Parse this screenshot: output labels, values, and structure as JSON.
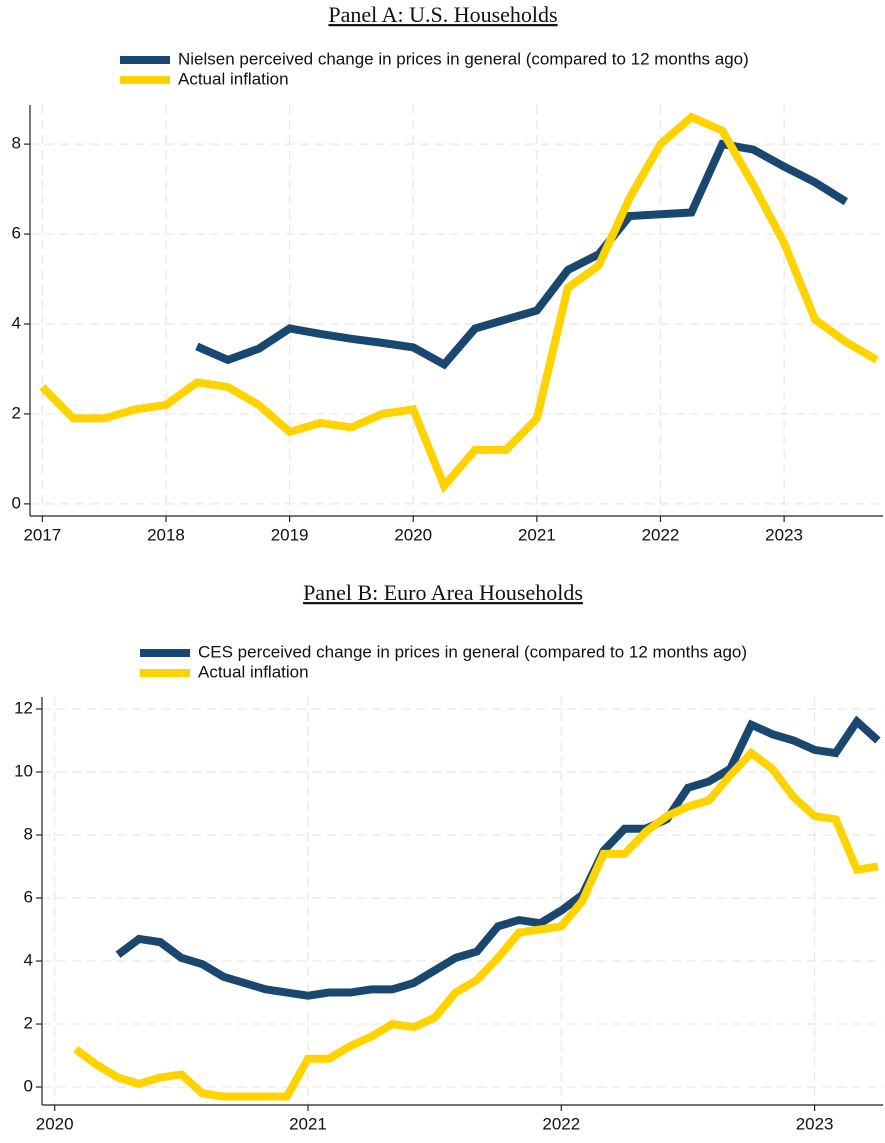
{
  "chart_data": [
    {
      "type": "line",
      "title": "Panel A: U.S. Households",
      "x": [
        2017,
        2017.25,
        2017.5,
        2017.75,
        2018,
        2018.25,
        2018.5,
        2018.75,
        2019,
        2019.25,
        2019.5,
        2019.75,
        2020,
        2020.25,
        2020.5,
        2020.75,
        2021,
        2021.25,
        2021.5,
        2021.75,
        2022,
        2022.25,
        2022.5,
        2022.75,
        2023,
        2023.25,
        2023.5,
        2023.75
      ],
      "series": [
        {
          "name": "Nielsen perceived change in prices in general (compared to 12 months ago)",
          "color": "#1a476f",
          "values": [
            null,
            null,
            null,
            null,
            null,
            3.5,
            3.2,
            3.45,
            3.9,
            3.78,
            3.67,
            3.58,
            3.48,
            3.1,
            3.9,
            4.1,
            4.3,
            5.2,
            5.55,
            6.4,
            6.44,
            6.48,
            8.0,
            7.88,
            7.5,
            7.15,
            6.72,
            null
          ]
        },
        {
          "name": "Actual inflation",
          "color": "#ffd300",
          "values": [
            2.6,
            1.9,
            1.9,
            2.1,
            2.2,
            2.7,
            2.6,
            2.2,
            1.6,
            1.8,
            1.7,
            2.0,
            2.1,
            0.4,
            1.2,
            1.2,
            1.9,
            4.8,
            5.3,
            6.8,
            8.0,
            8.6,
            8.3,
            7.1,
            5.8,
            4.1,
            3.6,
            3.2
          ]
        }
      ],
      "xlim": [
        2016.9,
        2023.8
      ],
      "xticks": [
        2017,
        2018,
        2019,
        2020,
        2021,
        2022,
        2023
      ],
      "ylim": [
        -0.27,
        8.87
      ],
      "yticks": [
        0,
        2,
        4,
        6,
        8
      ],
      "grid": true
    },
    {
      "type": "line",
      "title": "Panel B: Euro Area Households",
      "x": [
        2020.083,
        2020.167,
        2020.25,
        2020.333,
        2020.417,
        2020.5,
        2020.583,
        2020.667,
        2020.75,
        2020.833,
        2020.917,
        2021,
        2021.083,
        2021.167,
        2021.25,
        2021.333,
        2021.417,
        2021.5,
        2021.583,
        2021.667,
        2021.75,
        2021.833,
        2021.917,
        2022,
        2022.083,
        2022.167,
        2022.25,
        2022.333,
        2022.417,
        2022.5,
        2022.583,
        2022.667,
        2022.75,
        2022.833,
        2022.917,
        2023,
        2023.083,
        2023.167,
        2023.25
      ],
      "series": [
        {
          "name": "CES perceived change in prices in general (compared to 12 months ago)",
          "color": "#1a476f",
          "values": [
            null,
            null,
            4.2,
            4.7,
            4.6,
            4.1,
            3.9,
            3.5,
            3.3,
            3.1,
            3.0,
            2.9,
            3.0,
            3.0,
            3.1,
            3.1,
            3.3,
            3.7,
            4.1,
            4.3,
            5.1,
            5.3,
            5.2,
            5.6,
            6.1,
            7.5,
            8.2,
            8.2,
            8.5,
            9.5,
            9.7,
            10.1,
            11.5,
            11.2,
            11.0,
            10.7,
            10.6,
            11.6,
            11.0
          ]
        },
        {
          "name": "Actual inflation",
          "color": "#ffd300",
          "values": [
            1.2,
            0.7,
            0.3,
            0.1,
            0.3,
            0.4,
            -0.2,
            -0.3,
            -0.3,
            -0.3,
            -0.3,
            0.9,
            0.9,
            1.3,
            1.6,
            2.0,
            1.9,
            2.2,
            3.0,
            3.4,
            4.1,
            4.9,
            5.0,
            5.1,
            5.9,
            7.4,
            7.4,
            8.1,
            8.6,
            8.9,
            9.1,
            9.9,
            10.6,
            10.1,
            9.2,
            8.6,
            8.5,
            6.9,
            7.0
          ]
        }
      ],
      "xlim": [
        2019.95,
        2023.27
      ],
      "xticks": [
        2020,
        2021,
        2022,
        2023
      ],
      "ylim": [
        -0.57,
        12.38
      ],
      "yticks": [
        0,
        2,
        4,
        6,
        8,
        10,
        12
      ],
      "grid": true
    }
  ]
}
